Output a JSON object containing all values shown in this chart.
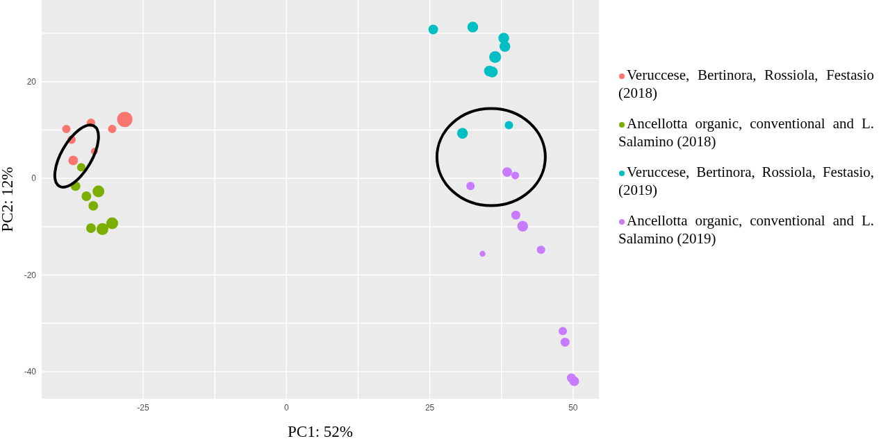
{
  "chart_data": {
    "type": "bubble",
    "xlabel": "PC1: 52%",
    "ylabel": "PC2: 12%",
    "xlim": [
      -42.7,
      54.5
    ],
    "ylim": [
      -45.6,
      36.9
    ],
    "xticks": [
      {
        "value": -25,
        "label": "-25"
      },
      {
        "value": -12.5,
        "label": null
      },
      {
        "value": 0,
        "label": "0"
      },
      {
        "value": 12.5,
        "label": null
      },
      {
        "value": 25,
        "label": "25"
      },
      {
        "value": 37.5,
        "label": null
      },
      {
        "value": 50,
        "label": "50"
      }
    ],
    "yticks": [
      {
        "value": -40,
        "label": "-40"
      },
      {
        "value": -30,
        "label": null
      },
      {
        "value": -20,
        "label": "-20"
      },
      {
        "value": -10,
        "label": null
      },
      {
        "value": 0,
        "label": "0"
      },
      {
        "value": 10,
        "label": null
      },
      {
        "value": 20,
        "label": "20"
      },
      {
        "value": 30,
        "label": null
      }
    ],
    "grid": true,
    "legend": "right",
    "marker": "circle",
    "series": [
      {
        "name": "Veruccese, Bertinora, Rossiola, Festasio (2018)",
        "color": "#f8766d",
        "x": [
          -38.4,
          -34.1,
          -37.5,
          -30.4,
          -28.2,
          -33.5,
          -37.2
        ],
        "values": [
          10.2,
          11.5,
          8.0,
          10.2,
          12.2,
          5.6,
          3.7
        ],
        "sizes": [
          0.3,
          0.3,
          0.3,
          0.3,
          1,
          0.2,
          0.4
        ]
      },
      {
        "name": "Ancellotta organic, conventional and L. Salamino (2018)",
        "color": "#7cae00",
        "x": [
          -35.8,
          -36.8,
          -34.9,
          -32.8,
          -33.7,
          -34.1,
          -32.1,
          -30.4
        ],
        "values": [
          2.3,
          -1.6,
          -3.7,
          -2.7,
          -5.7,
          -10.3,
          -10.5,
          -9.3
        ],
        "sizes": [
          0.3,
          0.4,
          0.4,
          0.6,
          0.4,
          0.4,
          0.6,
          0.6
        ]
      },
      {
        "name": "Veruccese, Bertinora, Rossiola, Festasio, (2019)",
        "color": "#00bfc4",
        "x": [
          25.6,
          32.5,
          37.9,
          38.1,
          36.4,
          35.4,
          35.9,
          30.7,
          38.8
        ],
        "values": [
          30.8,
          31.3,
          29.0,
          27.3,
          25.1,
          22.2,
          22.0,
          9.3,
          11.0
        ],
        "sizes": [
          0.4,
          0.5,
          0.5,
          0.5,
          0.6,
          0.5,
          0.5,
          0.5,
          0.3
        ]
      },
      {
        "name": "Ancellotta organic, conventional and L. Salamino (2019)",
        "color": "#c77cff",
        "x": [
          38.5,
          39.9,
          32.1,
          40.0,
          41.2,
          34.2,
          44.4,
          48.2,
          48.6,
          49.7,
          50.2
        ],
        "values": [
          1.3,
          0.6,
          -1.6,
          -7.6,
          -9.9,
          -15.6,
          -14.8,
          -31.6,
          -33.9,
          -41.3,
          -42.0
        ],
        "sizes": [
          0.4,
          0.25,
          0.3,
          0.35,
          0.5,
          0.15,
          0.3,
          0.3,
          0.35,
          0.35,
          0.4
        ]
      }
    ]
  }
}
